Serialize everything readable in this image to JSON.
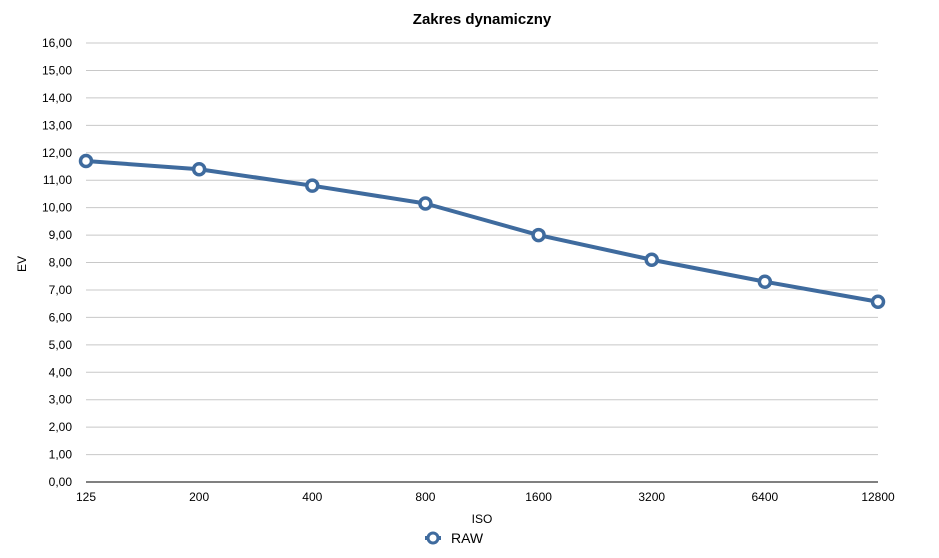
{
  "chart_data": {
    "type": "line",
    "title": "Zakres dynamiczny",
    "xlabel": "ISO",
    "ylabel": "EV",
    "categories": [
      "125",
      "200",
      "400",
      "800",
      "1600",
      "3200",
      "6400",
      "12800"
    ],
    "series": [
      {
        "name": "RAW",
        "values": [
          11.7,
          11.4,
          10.8,
          10.15,
          9.0,
          8.1,
          7.3,
          6.57
        ]
      }
    ],
    "ylim": [
      0,
      16
    ],
    "ytick_step": 1,
    "ytick_labels": [
      "0,00",
      "1,00",
      "2,00",
      "3,00",
      "4,00",
      "5,00",
      "6,00",
      "7,00",
      "8,00",
      "9,00",
      "10,00",
      "11,00",
      "12,00",
      "13,00",
      "14,00",
      "15,00",
      "16,00"
    ],
    "grid": true,
    "legend": "bottom-center",
    "colors": {
      "series": "#3f6b9e",
      "grid": "#c8c8c8",
      "axis": "#000000",
      "marker_fill": "#ffffff"
    }
  }
}
